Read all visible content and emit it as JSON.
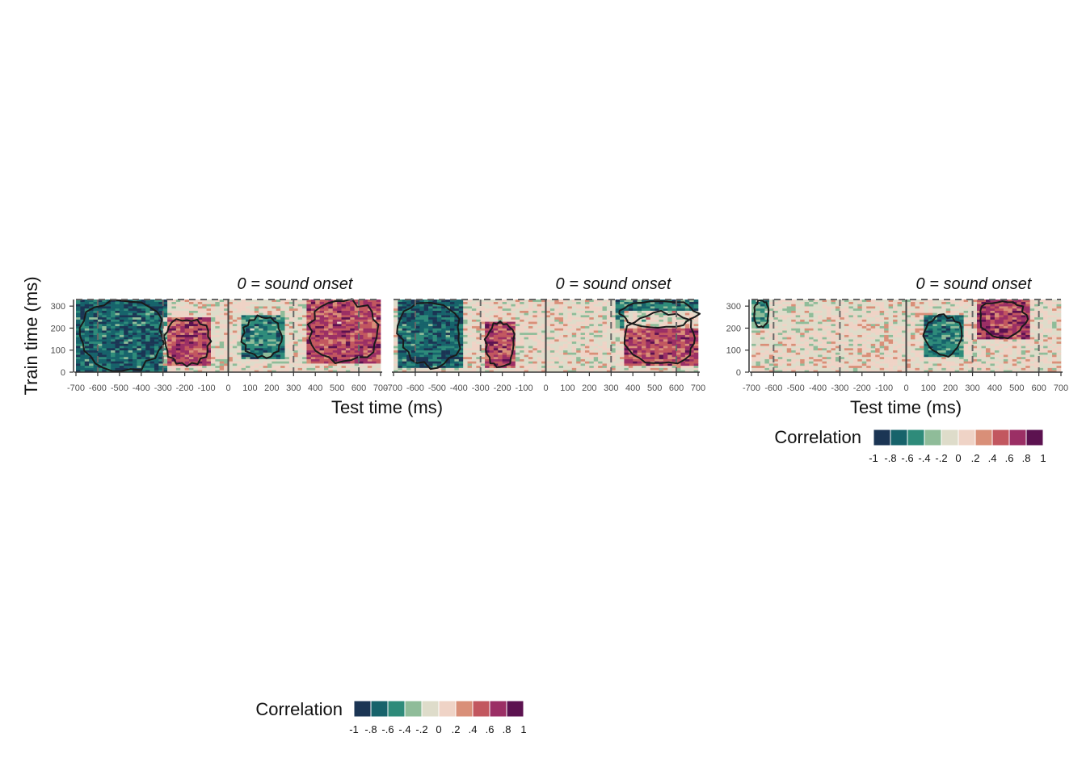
{
  "palette": [
    "#1b3554",
    "#17636b",
    "#2e8b7a",
    "#8fbc99",
    "#dedcca",
    "#efd3c6",
    "#d98f78",
    "#c2575f",
    "#9b2f65",
    "#5c1250"
  ],
  "chart_data": [
    {
      "type": "heatmap",
      "panel": "left",
      "title": "0 = sound onset",
      "xlabel": "Test time (ms)",
      "ylabel": "Train time (ms)",
      "xlim": [
        -700,
        700
      ],
      "ylim": [
        0,
        330
      ],
      "x_ticks": [
        "-700",
        "-600",
        "-500",
        "-400",
        "-300",
        "-200",
        "-100",
        "0",
        "100",
        "200",
        "300",
        "400",
        "500",
        "600",
        "700",
        "-700",
        "-600",
        "-500",
        "-400",
        "-300",
        "-200",
        "-100",
        "0",
        "100",
        "200",
        "300",
        "400",
        "500",
        "600",
        "700"
      ],
      "y_ticks": [
        "0",
        "100",
        "200",
        "300"
      ],
      "segments": [
        {
          "xlim": [
            -700,
            700
          ],
          "clusters": [
            {
              "sign": "negative",
              "x": [
                -690,
                -290
              ],
              "y": [
                0,
                330
              ],
              "strength": 0.75
            },
            {
              "sign": "positive",
              "x": [
                -300,
                -80
              ],
              "y": [
                30,
                250
              ],
              "strength": 0.6
            },
            {
              "sign": "negative",
              "x": [
                60,
                250
              ],
              "y": [
                60,
                260
              ],
              "strength": 0.6
            },
            {
              "sign": "positive",
              "x": [
                360,
                700
              ],
              "y": [
                40,
                330
              ],
              "strength": 0.6
            }
          ]
        },
        {
          "xlim": [
            -700,
            700
          ],
          "clusters": [
            {
              "sign": "negative",
              "x": [
                -680,
                -380
              ],
              "y": [
                20,
                330
              ],
              "strength": 0.75
            },
            {
              "sign": "positive",
              "x": [
                -280,
                -140
              ],
              "y": [
                20,
                230
              ],
              "strength": 0.6
            },
            {
              "sign": "negative",
              "x": [
                330,
                700
              ],
              "y": [
                200,
                330
              ],
              "strength": 0.6
            },
            {
              "sign": "positive",
              "x": [
                360,
                700
              ],
              "y": [
                30,
                280
              ],
              "strength": 0.6
            }
          ]
        }
      ]
    },
    {
      "type": "heatmap",
      "panel": "right",
      "title": "0 = sound onset",
      "xlabel": "Test time (ms)",
      "ylabel": "",
      "xlim": [
        -700,
        700
      ],
      "ylim": [
        0,
        330
      ],
      "x_ticks": [
        "-700",
        "-600",
        "-500",
        "-400",
        "-300",
        "-200",
        "-100",
        "0",
        "100",
        "200",
        "300",
        "400",
        "500",
        "600",
        "700"
      ],
      "y_ticks": [
        "0",
        "100",
        "200",
        "300"
      ],
      "segments": [
        {
          "xlim": [
            -700,
            700
          ],
          "clusters": [
            {
              "sign": "negative",
              "x": [
                -690,
                -620
              ],
              "y": [
                200,
                330
              ],
              "strength": 0.45
            },
            {
              "sign": "negative",
              "x": [
                80,
                260
              ],
              "y": [
                70,
                260
              ],
              "strength": 0.6
            },
            {
              "sign": "positive",
              "x": [
                320,
                550
              ],
              "y": [
                150,
                330
              ],
              "strength": 0.65
            }
          ]
        }
      ]
    }
  ],
  "legends": [
    {
      "title": "Correlation",
      "labels": [
        "-1",
        "-.8",
        "-.6",
        "-.4",
        "-.2",
        "0",
        ".2",
        ".4",
        ".6",
        ".8",
        "1"
      ]
    },
    {
      "title": "Correlation",
      "labels": [
        "-1",
        "-.8",
        "-.6",
        "-.4",
        "-.2",
        "0",
        ".2",
        ".4",
        ".6",
        ".8",
        "1"
      ]
    }
  ]
}
